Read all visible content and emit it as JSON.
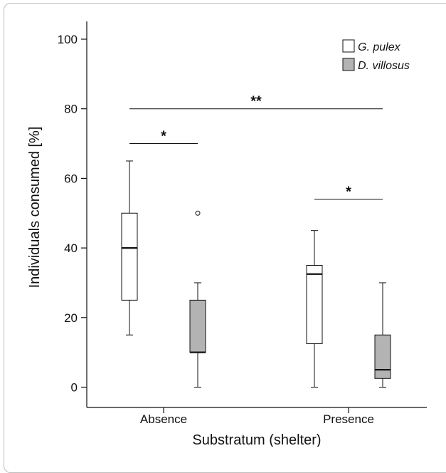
{
  "chart_data": {
    "type": "box",
    "ylabel": "Individuals consumed [%]",
    "xlabel": "Substratum (shelter)",
    "ylim": [
      0,
      100
    ],
    "yticks": [
      0,
      20,
      40,
      60,
      80,
      100
    ],
    "categories": [
      "Absence",
      "Presence"
    ],
    "legend_position": "top-right",
    "series": [
      {
        "name": "G. pulex",
        "fill": "#ffffff",
        "boxes": [
          {
            "category": "Absence",
            "whisker_low": 15,
            "q1": 25,
            "median": 40,
            "q3": 50,
            "whisker_high": 65,
            "outliers": []
          },
          {
            "category": "Presence",
            "whisker_low": 0,
            "q1": 12.5,
            "median": 32.5,
            "q3": 35,
            "whisker_high": 45,
            "outliers": []
          }
        ]
      },
      {
        "name": "D. villosus",
        "fill": "#b3b3b3",
        "boxes": [
          {
            "category": "Absence",
            "whisker_low": 0,
            "q1": 10,
            "median": 10,
            "q3": 25,
            "whisker_high": 30,
            "outliers": [
              50
            ]
          },
          {
            "category": "Presence",
            "whisker_low": 0,
            "q1": 2.5,
            "median": 5,
            "q3": 15,
            "whisker_high": 30,
            "outliers": []
          }
        ]
      }
    ],
    "annotations": [
      {
        "label": "**",
        "y": 80,
        "from": "Absence|G. pulex",
        "to": "Presence|D. villosus"
      },
      {
        "label": "*",
        "y": 70,
        "from": "Absence|G. pulex",
        "to": "Absence|D. villosus"
      },
      {
        "label": "*",
        "y": 54,
        "from": "Presence|G. pulex",
        "to": "Presence|D. villosus"
      }
    ]
  }
}
